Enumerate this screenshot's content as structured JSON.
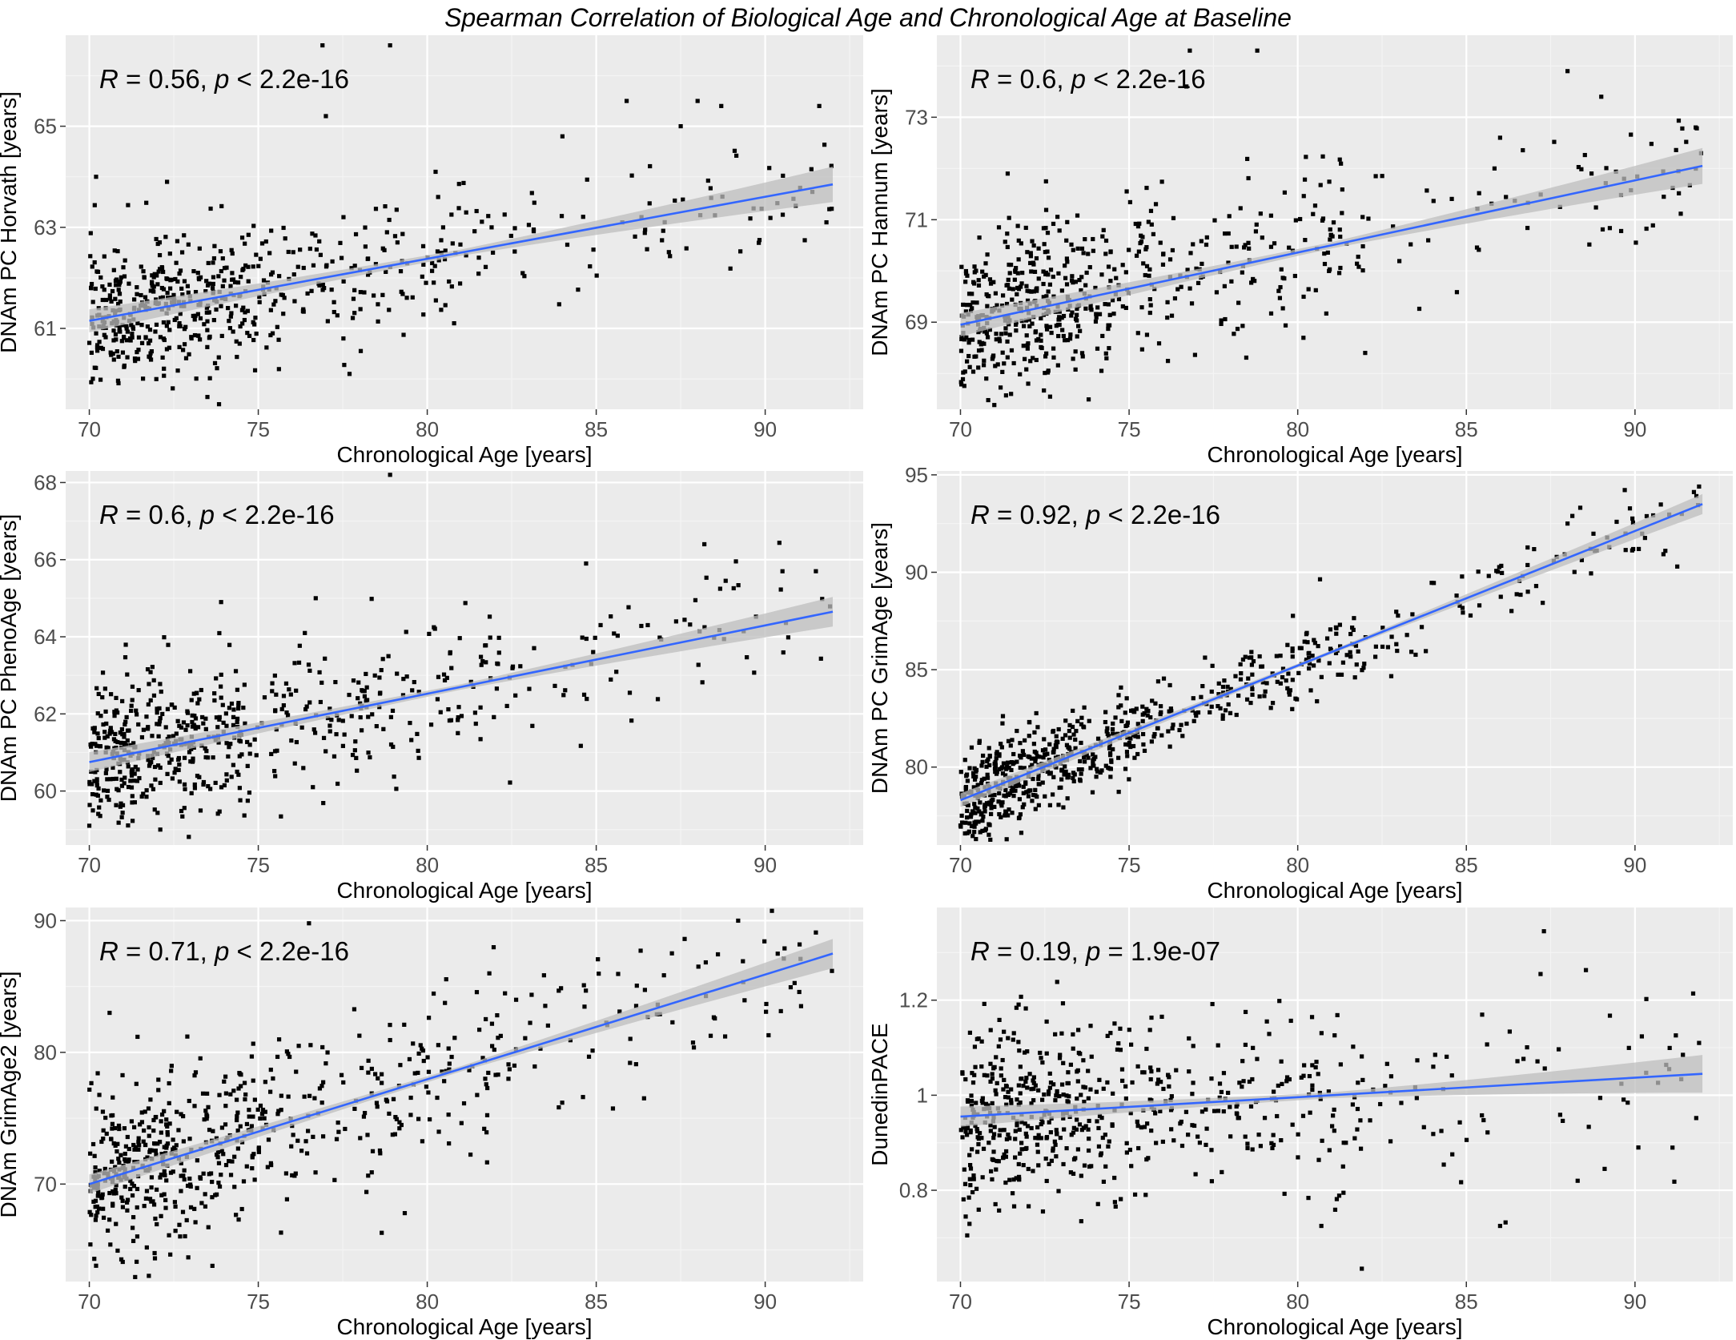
{
  "title": "Spearman Correlation of Biological Age and Chronological Age at Baseline",
  "colors": {
    "panel_bg": "#ebebeb",
    "grid_major": "#ffffff",
    "points": "#000000",
    "fit_line": "#3366ff",
    "ci_band": "#bdbdbd",
    "tick_text": "#4d4d4d"
  },
  "chart_data": [
    {
      "type": "scatter",
      "xlabel": "Chronological Age [years]",
      "ylabel": "DNAm PC Horvath [years]",
      "annotation": {
        "r": "R = 0.56",
        "p": "p < 2.2e-16"
      },
      "xlim": [
        69.3,
        92.9
      ],
      "ylim": [
        59.4,
        66.8
      ],
      "xticks": [
        70,
        75,
        80,
        85,
        90
      ],
      "yticks": [
        61,
        63,
        65
      ],
      "fit": {
        "x": [
          70,
          92
        ],
        "y": [
          61.15,
          63.85
        ]
      },
      "ci_halfwidth": {
        "start": 0.14,
        "mid": 0.06,
        "end": 0.22
      },
      "n_points": 620,
      "seed": 11,
      "noise_sd": 0.68,
      "x_mode": 71.3,
      "outliers": [
        [
          76.9,
          66.6
        ],
        [
          77.0,
          65.2
        ],
        [
          78.9,
          66.6
        ],
        [
          85.9,
          65.5
        ],
        [
          88.0,
          65.5
        ],
        [
          91.6,
          65.4
        ],
        [
          88.7,
          65.4
        ],
        [
          72.3,
          63.9
        ],
        [
          70.2,
          64.0
        ],
        [
          84.0,
          64.8
        ],
        [
          87.5,
          65.0
        ],
        [
          77.7,
          60.1
        ]
      ]
    },
    {
      "type": "scatter",
      "xlabel": "Chronological Age [years]",
      "ylabel": "DNAm PC Hannum [years]",
      "annotation": {
        "r": "R = 0.6",
        "p": "p < 2.2e-16"
      },
      "xlim": [
        69.3,
        92.9
      ],
      "ylim": [
        67.3,
        74.6
      ],
      "xticks": [
        70,
        75,
        80,
        85,
        90
      ],
      "yticks": [
        69,
        71,
        73
      ],
      "fit": {
        "x": [
          70,
          92
        ],
        "y": [
          68.95,
          72.05
        ]
      },
      "ci_halfwidth": {
        "start": 0.14,
        "mid": 0.06,
        "end": 0.22
      },
      "n_points": 620,
      "seed": 23,
      "noise_sd": 0.78,
      "x_mode": 71.3,
      "outliers": [
        [
          76.8,
          74.3
        ],
        [
          78.8,
          74.3
        ],
        [
          76.7,
          73.6
        ],
        [
          88.0,
          73.9
        ],
        [
          89.0,
          73.4
        ],
        [
          91.8,
          72.8
        ],
        [
          86.0,
          72.6
        ],
        [
          71.4,
          71.9
        ],
        [
          82.0,
          68.4
        ],
        [
          71.5,
          67.6
        ]
      ]
    },
    {
      "type": "scatter",
      "xlabel": "Chronological Age [years]",
      "ylabel": "DNAm PC PhenoAge [years]",
      "annotation": {
        "r": "R = 0.6",
        "p": "p < 2.2e-16"
      },
      "xlim": [
        69.3,
        92.9
      ],
      "ylim": [
        58.6,
        68.3
      ],
      "xticks": [
        70,
        75,
        80,
        85,
        90
      ],
      "yticks": [
        60,
        62,
        64,
        66,
        68
      ],
      "fit": {
        "x": [
          70,
          92
        ],
        "y": [
          60.75,
          64.65
        ]
      },
      "ci_halfwidth": {
        "start": 0.16,
        "mid": 0.07,
        "end": 0.24
      },
      "n_points": 620,
      "seed": 37,
      "noise_sd": 0.95,
      "x_mode": 71.3,
      "outliers": [
        [
          78.9,
          68.2
        ],
        [
          88.2,
          66.4
        ],
        [
          84.7,
          65.9
        ],
        [
          91.5,
          65.7
        ],
        [
          73.9,
          64.9
        ],
        [
          76.7,
          65.0
        ],
        [
          70.0,
          59.1
        ],
        [
          72.1,
          59.0
        ]
      ]
    },
    {
      "type": "scatter",
      "xlabel": "Chronological Age [years]",
      "ylabel": "DNAm PC GrimAge [years]",
      "annotation": {
        "r": "R = 0.92",
        "p": "p < 2.2e-16"
      },
      "xlim": [
        69.3,
        92.9
      ],
      "ylim": [
        76.0,
        95.2
      ],
      "xticks": [
        70,
        75,
        80,
        85,
        90
      ],
      "yticks": [
        80,
        85,
        90,
        95
      ],
      "fit": {
        "x": [
          70,
          92
        ],
        "y": [
          78.3,
          93.5
        ]
      },
      "ci_halfwidth": {
        "start": 0.22,
        "mid": 0.09,
        "end": 0.32
      },
      "n_points": 720,
      "seed": 41,
      "noise_sd": 1.05,
      "x_mode": 71.3,
      "outliers": [
        [
          91.9,
          94.4
        ],
        [
          90.9,
          91.1
        ],
        [
          88.0,
          92.5
        ],
        [
          70.0,
          77.0
        ]
      ]
    },
    {
      "type": "scatter",
      "xlabel": "Chronological Age [years]",
      "ylabel": "DNAm GrimAge2 [years]",
      "annotation": {
        "r": "R = 0.71",
        "p": "p < 2.2e-16"
      },
      "xlim": [
        69.3,
        92.9
      ],
      "ylim": [
        62.6,
        91.0
      ],
      "xticks": [
        70,
        75,
        80,
        85,
        90
      ],
      "yticks": [
        70,
        80,
        90
      ],
      "fit": {
        "x": [
          70,
          92
        ],
        "y": [
          70.0,
          87.5
        ]
      },
      "ci_halfwidth": {
        "start": 0.45,
        "mid": 0.2,
        "end": 0.7
      },
      "n_points": 640,
      "seed": 53,
      "noise_sd": 3.1,
      "x_mode": 71.3,
      "outliers": [
        [
          76.5,
          89.8
        ],
        [
          89.2,
          90.0
        ],
        [
          91.5,
          89.1
        ],
        [
          70.2,
          63.8
        ],
        [
          71.4,
          64.1
        ],
        [
          70.6,
          83.0
        ],
        [
          72.9,
          81.2
        ],
        [
          78.2,
          69.4
        ],
        [
          86.0,
          79.2
        ],
        [
          90.1,
          81.3
        ]
      ]
    },
    {
      "type": "scatter",
      "xlabel": "Chronological Age [years]",
      "ylabel": "DunedinPACE",
      "annotation": {
        "r": "R = 0.19",
        "p": "p = 1.9e-07"
      },
      "xlim": [
        69.3,
        92.9
      ],
      "ylim": [
        0.608,
        1.395
      ],
      "xticks": [
        70,
        75,
        80,
        85,
        90
      ],
      "yticks": [
        0.8,
        1.0,
        1.2
      ],
      "fit": {
        "x": [
          70,
          92
        ],
        "y": [
          0.955,
          1.045
        ]
      },
      "ci_halfwidth": {
        "start": 0.012,
        "mid": 0.006,
        "end": 0.026
      },
      "n_points": 620,
      "seed": 67,
      "noise_sd": 0.092,
      "x_mode": 71.3,
      "outliers": [
        [
          87.3,
          1.345
        ],
        [
          87.2,
          1.255
        ],
        [
          70.2,
          0.705
        ],
        [
          81.9,
          0.635
        ],
        [
          86.0,
          0.725
        ],
        [
          80.7,
          0.725
        ],
        [
          90.1,
          0.89
        ],
        [
          88.3,
          0.82
        ],
        [
          91.9,
          1.11
        ],
        [
          89.1,
          0.845
        ]
      ]
    }
  ]
}
